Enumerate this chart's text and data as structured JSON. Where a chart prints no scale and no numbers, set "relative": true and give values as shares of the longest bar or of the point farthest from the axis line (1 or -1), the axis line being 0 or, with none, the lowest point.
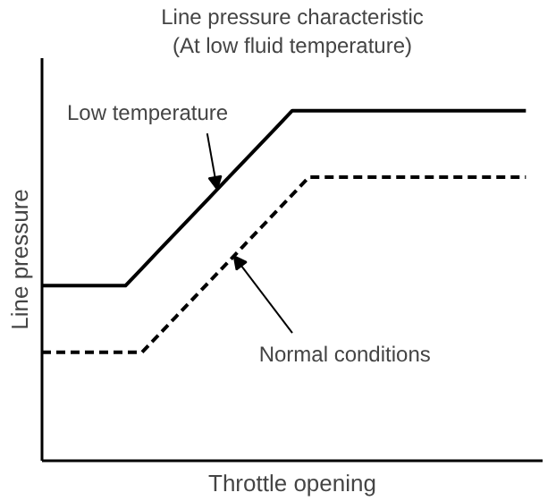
{
  "chart_data": {
    "type": "line",
    "title": "Line pressure characteristic",
    "subtitle": "(At low fluid temperature)",
    "xlabel": "Throttle opening",
    "ylabel": "Line pressure",
    "relative": true,
    "categories": [
      null,
      null,
      null,
      null,
      null,
      null,
      null,
      null,
      null,
      null,
      null,
      null,
      null,
      null,
      null,
      null,
      null,
      null,
      null,
      null,
      null,
      null,
      null,
      null,
      null,
      null,
      null,
      null,
      null,
      null
    ],
    "series": [
      {
        "color": "#000000",
        "line_style": "solid",
        "values": [
          0.5,
          0.5,
          0.5,
          0.5,
          0.5,
          0.5,
          0.55,
          0.6,
          0.65,
          0.7,
          0.75,
          0.8,
          0.85,
          0.9,
          0.95,
          1,
          1,
          1,
          1,
          1,
          1,
          1,
          1,
          1,
          1,
          1,
          1,
          1,
          1,
          1
        ]
      },
      {
        "color": "#000000",
        "line_style": "dashed",
        "values": [
          0.31,
          0.31,
          0.31,
          0.31,
          0.31,
          0.31,
          0.31,
          0.36,
          0.41,
          0.46,
          0.51,
          0.56,
          0.61,
          0.66,
          0.71,
          0.76,
          0.81,
          0.81,
          0.81,
          0.81,
          0.81,
          0.81,
          0.81,
          0.81,
          0.81,
          0.81,
          0.81,
          0.81,
          0.81,
          0.81
        ]
      }
    ],
    "annotations": [
      "Low temperature",
      "Normal conditions"
    ]
  }
}
